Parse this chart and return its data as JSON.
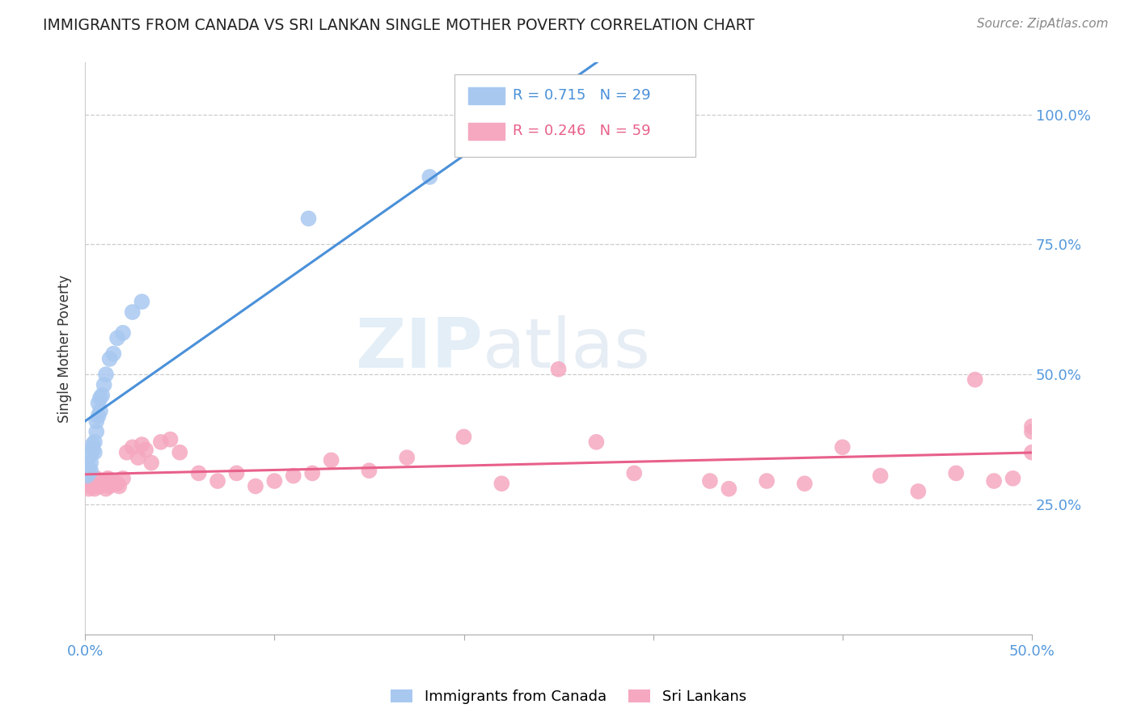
{
  "title": "IMMIGRANTS FROM CANADA VS SRI LANKAN SINGLE MOTHER POVERTY CORRELATION CHART",
  "source": "Source: ZipAtlas.com",
  "ylabel": "Single Mother Poverty",
  "xlim": [
    0.0,
    0.5
  ],
  "ylim": [
    0.0,
    1.1
  ],
  "x_tick_positions": [
    0.0,
    0.1,
    0.2,
    0.3,
    0.4,
    0.5
  ],
  "x_tick_labels": [
    "0.0%",
    "",
    "",
    "",
    "",
    "50.0%"
  ],
  "y_tick_positions": [
    0.25,
    0.5,
    0.75,
    1.0
  ],
  "y_tick_labels": [
    "25.0%",
    "50.0%",
    "75.0%",
    "100.0%"
  ],
  "legend_R_canada": "R = 0.715",
  "legend_N_canada": "N = 29",
  "legend_R_srilanka": "R = 0.246",
  "legend_N_srilanka": "N = 59",
  "canada_color": "#a8c8f0",
  "srilanka_color": "#f5a8c0",
  "canada_line_color": "#4a90d9",
  "srilanka_line_color": "#e8608a",
  "canada_x": [
    0.001,
    0.002,
    0.002,
    0.003,
    0.003,
    0.003,
    0.004,
    0.004,
    0.005,
    0.005,
    0.006,
    0.006,
    0.007,
    0.007,
    0.008,
    0.008,
    0.009,
    0.01,
    0.011,
    0.013,
    0.015,
    0.017,
    0.02,
    0.025,
    0.03,
    0.118,
    0.182,
    0.246,
    0.248
  ],
  "canada_y": [
    0.305,
    0.31,
    0.32,
    0.315,
    0.33,
    0.345,
    0.355,
    0.365,
    0.35,
    0.37,
    0.39,
    0.41,
    0.42,
    0.445,
    0.43,
    0.455,
    0.46,
    0.48,
    0.5,
    0.53,
    0.54,
    0.57,
    0.58,
    0.62,
    0.64,
    0.8,
    0.88,
    0.99,
    0.99
  ],
  "srilanka_x": [
    0.001,
    0.002,
    0.002,
    0.003,
    0.003,
    0.004,
    0.005,
    0.005,
    0.006,
    0.006,
    0.007,
    0.008,
    0.009,
    0.01,
    0.011,
    0.012,
    0.013,
    0.015,
    0.017,
    0.018,
    0.02,
    0.022,
    0.025,
    0.028,
    0.03,
    0.032,
    0.035,
    0.04,
    0.045,
    0.05,
    0.06,
    0.07,
    0.08,
    0.09,
    0.1,
    0.11,
    0.12,
    0.13,
    0.15,
    0.17,
    0.2,
    0.22,
    0.25,
    0.27,
    0.29,
    0.33,
    0.34,
    0.36,
    0.38,
    0.4,
    0.42,
    0.44,
    0.46,
    0.47,
    0.48,
    0.49,
    0.5,
    0.5,
    0.5
  ],
  "srilanka_y": [
    0.29,
    0.28,
    0.305,
    0.285,
    0.3,
    0.295,
    0.28,
    0.29,
    0.285,
    0.3,
    0.295,
    0.285,
    0.29,
    0.295,
    0.28,
    0.3,
    0.285,
    0.295,
    0.29,
    0.285,
    0.3,
    0.35,
    0.36,
    0.34,
    0.365,
    0.355,
    0.33,
    0.37,
    0.375,
    0.35,
    0.31,
    0.295,
    0.31,
    0.285,
    0.295,
    0.305,
    0.31,
    0.335,
    0.315,
    0.34,
    0.38,
    0.29,
    0.51,
    0.37,
    0.31,
    0.295,
    0.28,
    0.295,
    0.29,
    0.36,
    0.305,
    0.275,
    0.31,
    0.49,
    0.295,
    0.3,
    0.4,
    0.35,
    0.39
  ]
}
